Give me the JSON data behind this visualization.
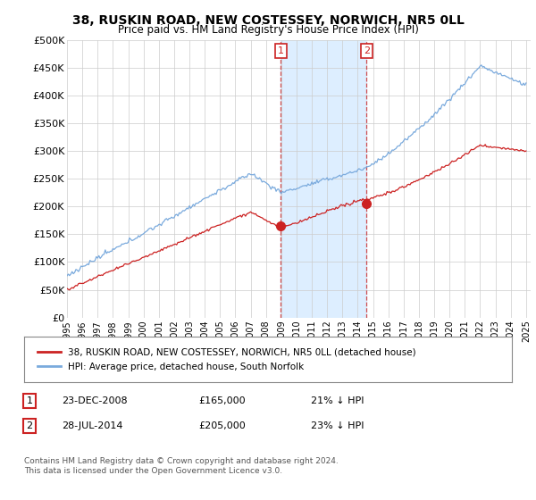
{
  "title": "38, RUSKIN ROAD, NEW COSTESSEY, NORWICH, NR5 0LL",
  "subtitle": "Price paid vs. HM Land Registry's House Price Index (HPI)",
  "ylim": [
    0,
    500000
  ],
  "yticks": [
    0,
    50000,
    100000,
    150000,
    200000,
    250000,
    300000,
    350000,
    400000,
    450000,
    500000
  ],
  "ytick_labels": [
    "£0",
    "£50K",
    "£100K",
    "£150K",
    "£200K",
    "£250K",
    "£300K",
    "£350K",
    "£400K",
    "£450K",
    "£500K"
  ],
  "hpi_color": "#7aaadd",
  "price_color": "#cc2222",
  "shade_color": "#ddeeff",
  "transaction1_date": 2008.97,
  "transaction1_price": 165000,
  "transaction2_date": 2014.57,
  "transaction2_price": 205000,
  "legend_label_price": "38, RUSKIN ROAD, NEW COSTESSEY, NORWICH, NR5 0LL (detached house)",
  "legend_label_hpi": "HPI: Average price, detached house, South Norfolk",
  "table_row1": [
    "1",
    "23-DEC-2008",
    "£165,000",
    "21% ↓ HPI"
  ],
  "table_row2": [
    "2",
    "28-JUL-2014",
    "£205,000",
    "23% ↓ HPI"
  ],
  "footnote": "Contains HM Land Registry data © Crown copyright and database right 2024.\nThis data is licensed under the Open Government Licence v3.0.",
  "bg_color": "#ffffff",
  "grid_color": "#cccccc"
}
